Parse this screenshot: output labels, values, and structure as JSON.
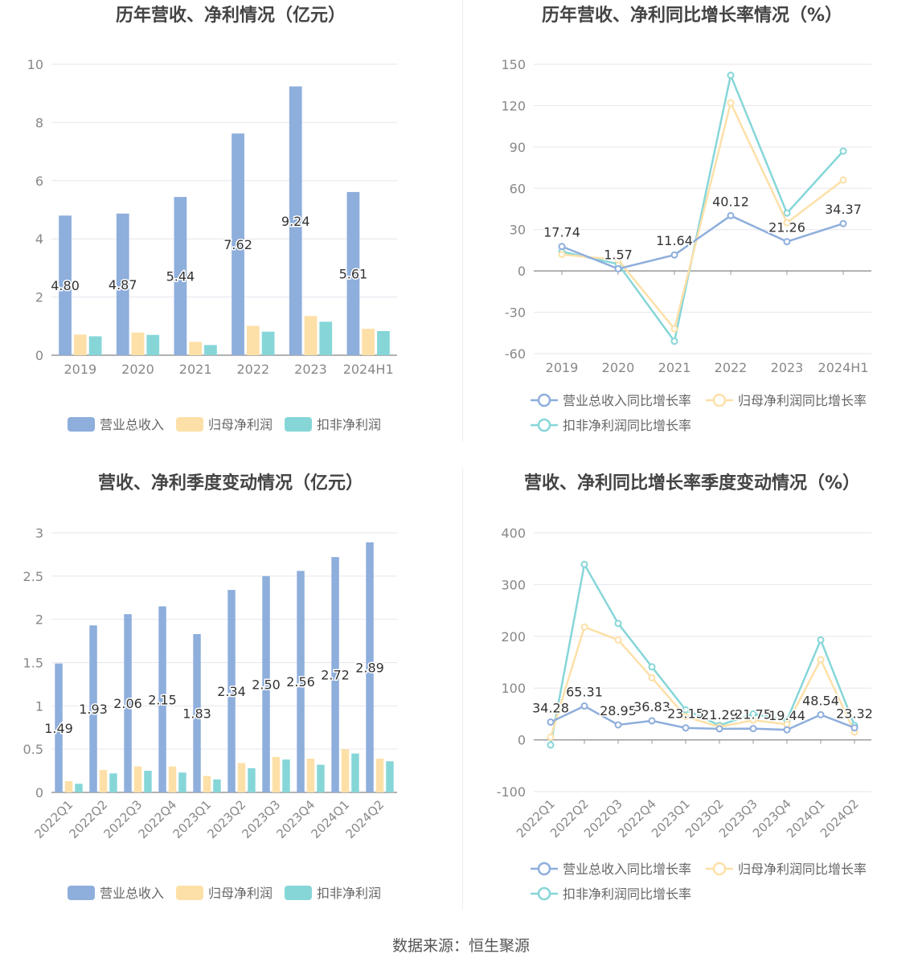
{
  "source_label": "数据来源：恒生聚源",
  "colors": {
    "revenue": "#8eaedc",
    "net_profit": "#fde0a8",
    "deducted_profit": "#86d6d8",
    "grid": "#e6e6ee",
    "axis": "#999999",
    "tick_text": "#888888",
    "title": "#444444",
    "label": "#333333",
    "legend_text": "#666666"
  },
  "chart_data": [
    {
      "type": "bar",
      "title": "历年营收、净利情况（亿元）",
      "categories": [
        "2019",
        "2020",
        "2021",
        "2022",
        "2023",
        "2024H1"
      ],
      "ylim": [
        0,
        10
      ],
      "y_ticks": [
        0,
        2,
        4,
        6,
        8,
        10
      ],
      "grid": true,
      "legend_position": "bottom",
      "series": [
        {
          "name": "营业总收入",
          "values": [
            4.8,
            4.87,
            5.44,
            7.62,
            9.24,
            5.61
          ],
          "labels": [
            "4.80",
            "4.87",
            "5.44",
            "7.62",
            "9.24",
            "5.61"
          ]
        },
        {
          "name": "归母净利润",
          "values": [
            0.71,
            0.78,
            0.46,
            1.01,
            1.35,
            0.91
          ]
        },
        {
          "name": "扣非净利润",
          "values": [
            0.65,
            0.7,
            0.35,
            0.81,
            1.15,
            0.83
          ]
        }
      ]
    },
    {
      "type": "line",
      "title": "历年营收、净利同比增长率情况（%）",
      "categories": [
        "2019",
        "2020",
        "2021",
        "2022",
        "2023",
        "2024H1"
      ],
      "ylim": [
        -60,
        150
      ],
      "y_ticks": [
        -60,
        -30,
        0,
        30,
        60,
        90,
        120,
        150
      ],
      "grid": true,
      "legend_position": "bottom",
      "series": [
        {
          "name": "营业总收入同比增长率",
          "values": [
            17.74,
            1.57,
            11.64,
            40.12,
            21.26,
            34.37
          ],
          "labels": [
            "17.74",
            "1.57",
            "11.64",
            "40.12",
            "21.26",
            "34.37"
          ]
        },
        {
          "name": "归母净利润同比增长率",
          "values": [
            12,
            8,
            -42,
            122,
            35,
            66
          ]
        },
        {
          "name": "扣非净利润同比增长率",
          "values": [
            14,
            5,
            -51,
            142,
            42,
            87
          ]
        }
      ]
    },
    {
      "type": "bar",
      "title": "营收、净利季度变动情况（亿元）",
      "categories": [
        "2022Q1",
        "2022Q2",
        "2022Q3",
        "2022Q4",
        "2023Q1",
        "2023Q2",
        "2023Q3",
        "2023Q4",
        "2024Q1",
        "2024Q2"
      ],
      "ylim": [
        0,
        3
      ],
      "y_ticks": [
        0,
        0.5,
        1,
        1.5,
        2,
        2.5,
        3
      ],
      "grid": true,
      "legend_position": "bottom",
      "series": [
        {
          "name": "营业总收入",
          "values": [
            1.49,
            1.93,
            2.06,
            2.15,
            1.83,
            2.34,
            2.5,
            2.56,
            2.72,
            2.89
          ],
          "labels": [
            "1.49",
            "1.93",
            "2.06",
            "2.15",
            "1.83",
            "2.34",
            "2.50",
            "2.56",
            "2.72",
            "2.89"
          ]
        },
        {
          "name": "归母净利润",
          "values": [
            0.13,
            0.26,
            0.3,
            0.3,
            0.19,
            0.34,
            0.41,
            0.39,
            0.5,
            0.39
          ]
        },
        {
          "name": "扣非净利润",
          "values": [
            0.1,
            0.22,
            0.25,
            0.23,
            0.15,
            0.28,
            0.38,
            0.32,
            0.45,
            0.36
          ]
        }
      ]
    },
    {
      "type": "line",
      "title": "营收、净利同比增长率季度变动情况（%）",
      "categories": [
        "2022Q1",
        "2022Q2",
        "2022Q3",
        "2022Q4",
        "2023Q1",
        "2023Q2",
        "2023Q3",
        "2023Q4",
        "2024Q1",
        "2024Q2"
      ],
      "ylim": [
        -100,
        400
      ],
      "y_ticks": [
        -100,
        0,
        100,
        200,
        300,
        400
      ],
      "grid": true,
      "legend_position": "bottom",
      "series": [
        {
          "name": "营业总收入同比增长率",
          "values": [
            34.28,
            65.31,
            28.95,
            36.83,
            23.15,
            21.29,
            21.75,
            19.44,
            48.54,
            23.32
          ],
          "labels": [
            "34.28",
            "65.31",
            "28.95",
            "36.83",
            "23.15",
            "21.29",
            "21.75",
            "19.44",
            "48.54",
            "23.32"
          ]
        },
        {
          "name": "归母净利润同比增长率",
          "values": [
            5,
            218,
            193,
            120,
            45,
            25,
            38,
            30,
            155,
            15
          ]
        },
        {
          "name": "扣非净利润同比增长率",
          "values": [
            -10,
            339,
            225,
            141,
            58,
            28,
            50,
            38,
            193,
            28
          ]
        }
      ]
    }
  ]
}
